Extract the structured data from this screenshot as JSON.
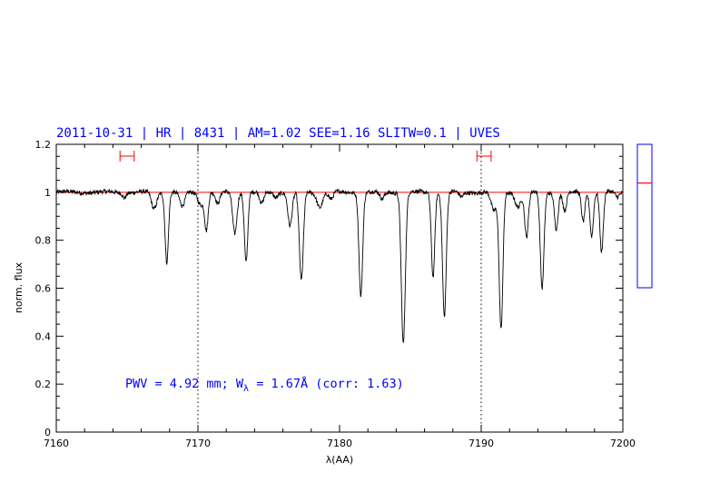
{
  "chart_data": {
    "type": "line",
    "title": "2011-10-31 | HR | 8431 | AM=1.02 SEE=1.16 SLITW=0.1 | UVES",
    "xlabel": "λ(AA)",
    "ylabel": "norm. flux",
    "xlim": [
      7160,
      7200
    ],
    "ylim": [
      0,
      1.2
    ],
    "xticks": [
      "7160",
      "7170",
      "7180",
      "7190",
      "7200"
    ],
    "yticks": [
      "0",
      "0.2",
      "0.4",
      "0.6",
      "0.8",
      "1",
      "1.2"
    ],
    "continuum_level": 1.0,
    "reference_lines_x": [
      7170,
      7190
    ],
    "continuum_windows": [
      [
        7164.5,
        7165.5
      ],
      [
        7189.7,
        7190.7
      ]
    ],
    "annotation": {
      "prefix": "PWV = 4.92 mm; W",
      "subscript": "λ",
      "suffix": " = 1.67Å (corr: 1.63)"
    },
    "side_scale_level": 0.73,
    "colors": {
      "text": "#0000ff",
      "spectrum": "#000000",
      "continuum": "#ff0000",
      "frame": "#0000ff"
    },
    "absorption_lines": [
      {
        "x": 7164.8,
        "depth": 0.02,
        "w": 0.12
      },
      {
        "x": 7166.9,
        "depth": 0.07,
        "w": 0.18
      },
      {
        "x": 7167.8,
        "depth": 0.29,
        "w": 0.12
      },
      {
        "x": 7168.9,
        "depth": 0.06,
        "w": 0.18
      },
      {
        "x": 7170.2,
        "depth": 0.05,
        "w": 0.2
      },
      {
        "x": 7170.6,
        "depth": 0.15,
        "w": 0.12
      },
      {
        "x": 7171.4,
        "depth": 0.05,
        "w": 0.15
      },
      {
        "x": 7172.6,
        "depth": 0.17,
        "w": 0.15
      },
      {
        "x": 7173.4,
        "depth": 0.29,
        "w": 0.12
      },
      {
        "x": 7174.5,
        "depth": 0.05,
        "w": 0.15
      },
      {
        "x": 7175.5,
        "depth": 0.02,
        "w": 0.15
      },
      {
        "x": 7176.5,
        "depth": 0.14,
        "w": 0.15
      },
      {
        "x": 7177.3,
        "depth": 0.37,
        "w": 0.14
      },
      {
        "x": 7178.6,
        "depth": 0.06,
        "w": 0.2
      },
      {
        "x": 7179.4,
        "depth": 0.03,
        "w": 0.15
      },
      {
        "x": 7181.5,
        "depth": 0.43,
        "w": 0.13
      },
      {
        "x": 7183.0,
        "depth": 0.03,
        "w": 0.15
      },
      {
        "x": 7184.5,
        "depth": 0.63,
        "w": 0.14
      },
      {
        "x": 7186.6,
        "depth": 0.35,
        "w": 0.12
      },
      {
        "x": 7187.4,
        "depth": 0.52,
        "w": 0.13
      },
      {
        "x": 7188.6,
        "depth": 0.02,
        "w": 0.15
      },
      {
        "x": 7190.9,
        "depth": 0.08,
        "w": 0.2
      },
      {
        "x": 7191.4,
        "depth": 0.57,
        "w": 0.13
      },
      {
        "x": 7192.6,
        "depth": 0.06,
        "w": 0.2
      },
      {
        "x": 7193.2,
        "depth": 0.19,
        "w": 0.13
      },
      {
        "x": 7194.3,
        "depth": 0.4,
        "w": 0.13
      },
      {
        "x": 7195.3,
        "depth": 0.15,
        "w": 0.13
      },
      {
        "x": 7195.9,
        "depth": 0.08,
        "w": 0.13
      },
      {
        "x": 7197.2,
        "depth": 0.12,
        "w": 0.12
      },
      {
        "x": 7197.8,
        "depth": 0.18,
        "w": 0.12
      },
      {
        "x": 7198.5,
        "depth": 0.25,
        "w": 0.12
      },
      {
        "x": 7199.6,
        "depth": 0.02,
        "w": 0.15
      }
    ]
  }
}
